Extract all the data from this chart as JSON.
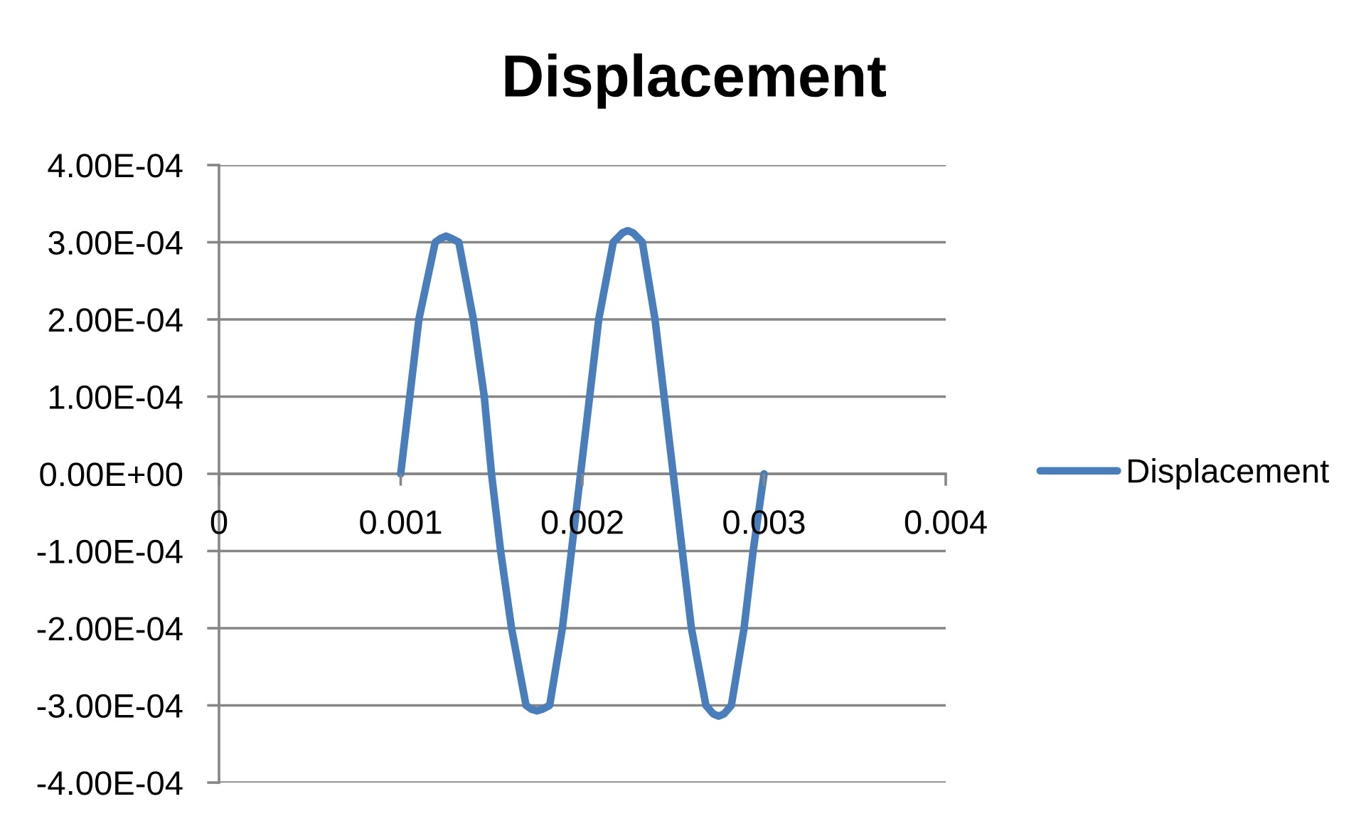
{
  "chart_data": {
    "type": "line",
    "title": "Displacement",
    "x": [
      0.001,
      0.00105,
      0.0011,
      0.00119,
      0.00122,
      0.00125,
      0.00128,
      0.00132,
      0.0014,
      0.00146,
      0.0015,
      0.00155,
      0.00161,
      0.00169,
      0.00172,
      0.00175,
      0.00178,
      0.00182,
      0.00189,
      0.00194,
      0.00199,
      0.00204,
      0.00209,
      0.00217,
      0.00222,
      0.00225,
      0.00228,
      0.00233,
      0.0024,
      0.00245,
      0.0025,
      0.00255,
      0.0026,
      0.00268,
      0.00272,
      0.00275,
      0.00278,
      0.00282,
      0.00289,
      0.00294,
      0.003
    ],
    "series": [
      {
        "name": "Displacement",
        "color": "#4a7ebb",
        "values": [
          0,
          0.0001,
          0.0002,
          0.0003,
          0.000305,
          0.000308,
          0.000305,
          0.0003,
          0.0002,
          0.0001,
          0,
          -0.0001,
          -0.0002,
          -0.0003,
          -0.000305,
          -0.000307,
          -0.000305,
          -0.0003,
          -0.0002,
          -0.0001,
          0,
          0.0001,
          0.0002,
          0.0003,
          0.000312,
          0.000315,
          0.000312,
          0.0003,
          0.0002,
          0.0001,
          0,
          -0.0001,
          -0.0002,
          -0.0003,
          -0.000311,
          -0.000314,
          -0.000311,
          -0.0003,
          -0.0002,
          -0.0001,
          0
        ]
      }
    ],
    "xlim": [
      0,
      0.004
    ],
    "xticks": [
      0,
      0.001,
      0.002,
      0.003,
      0.004
    ],
    "ylim": [
      -0.0004,
      0.0004
    ],
    "yticks": [
      {
        "value": -0.0004,
        "label": "-4.00E-04"
      },
      {
        "value": -0.0003,
        "label": "-3.00E-04"
      },
      {
        "value": -0.0002,
        "label": "-2.00E-04"
      },
      {
        "value": -0.0001,
        "label": "-1.00E-04"
      },
      {
        "value": 0,
        "label": "0.00E+00"
      },
      {
        "value": 0.0001,
        "label": "1.00E-04"
      },
      {
        "value": 0.0002,
        "label": "2.00E-04"
      },
      {
        "value": 0.0003,
        "label": "3.00E-04"
      },
      {
        "value": 0.0004,
        "label": "4.00E-04"
      }
    ],
    "grid": "y",
    "legend": "right"
  }
}
